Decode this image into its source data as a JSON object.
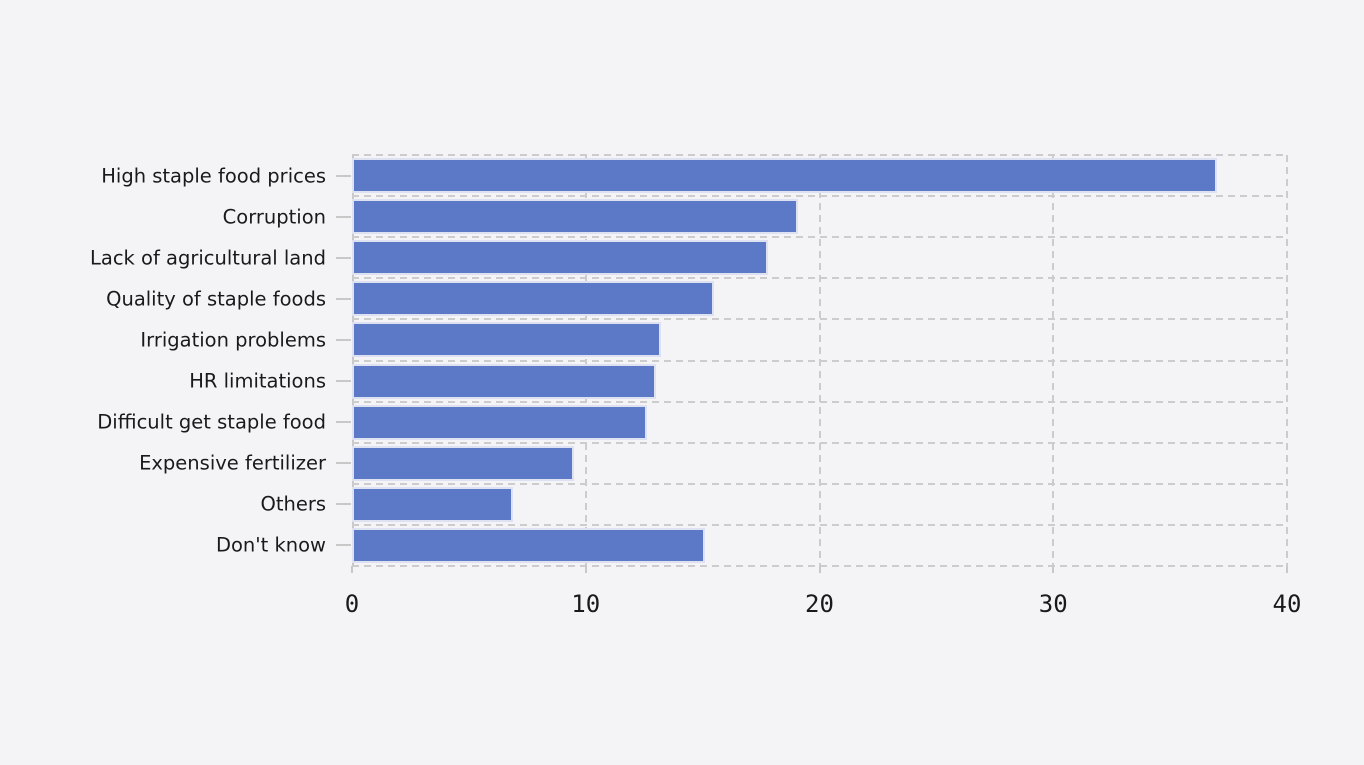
{
  "chart_data": {
    "type": "bar",
    "orientation": "horizontal",
    "title": "",
    "xlabel": "",
    "ylabel": "",
    "categories": [
      "High staple food prices",
      "Corruption",
      "Lack of agricultural land",
      "Quality of staple foods",
      "Irrigation problems",
      "HR limitations",
      "Difficult get staple food",
      "Expensive fertilizer",
      "Others",
      "Don't know"
    ],
    "values": [
      37.0,
      19.1,
      17.8,
      15.5,
      13.2,
      13.0,
      12.6,
      9.5,
      6.9,
      15.1
    ],
    "xlim": [
      0,
      40
    ],
    "x_ticks": [
      0,
      10,
      20,
      30,
      40
    ],
    "grid": "dashed",
    "legend": "none",
    "colors": {
      "background": "#f4f4f6",
      "bar_fill": "#5c79c8",
      "bar_border": "#dde1f1",
      "gridline": "#cccccc",
      "spine": "#c8c8c8",
      "text": "#1a1a1a"
    }
  }
}
